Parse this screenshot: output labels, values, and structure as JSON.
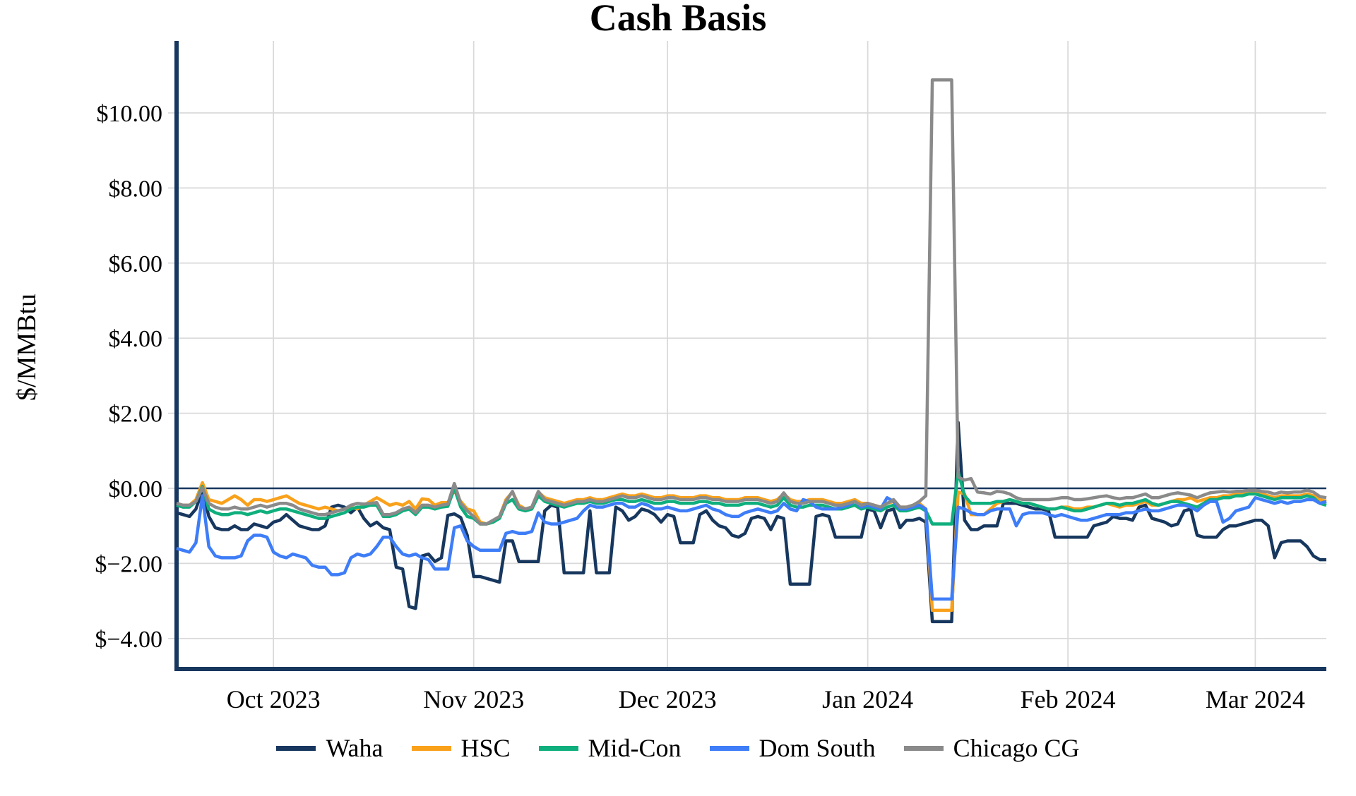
{
  "page": {
    "background": "#FFFFFF"
  },
  "chart_data": {
    "type": "line",
    "title": "Cash Basis",
    "ylabel": "$/MMBtu",
    "xlabel": "",
    "grid": true,
    "legend_position": "bottom",
    "x_start_date": "2023-09-16",
    "x_end_date": "2024-03-12",
    "x_points": 179,
    "ylim": [
      -4.85,
      11.9
    ],
    "axis_color": "#17375E",
    "grid_color": "#D9D9D9",
    "zero_line": {
      "show": true,
      "color": "#17375E"
    },
    "y_ticks": [
      {
        "value": 10,
        "label": "$10.00"
      },
      {
        "value": 8,
        "label": "$8.00"
      },
      {
        "value": 6,
        "label": "$6.00"
      },
      {
        "value": 4,
        "label": "$4.00"
      },
      {
        "value": 2,
        "label": "$2.00"
      },
      {
        "value": 0,
        "label": "$0.00"
      },
      {
        "value": -2,
        "label": "$−2.00"
      },
      {
        "value": -4,
        "label": "$−4.00"
      }
    ],
    "x_ticks": [
      {
        "label": "Oct 2023",
        "day_index": 15
      },
      {
        "label": "Nov 2023",
        "day_index": 46
      },
      {
        "label": "Dec 2023",
        "day_index": 76
      },
      {
        "label": "Jan 2024",
        "day_index": 107
      },
      {
        "label": "Feb 2024",
        "day_index": 138
      },
      {
        "label": "Mar 2024",
        "day_index": 167
      }
    ],
    "series": [
      {
        "name": "Waha",
        "color": "#17375E",
        "values": [
          -0.65,
          -0.7,
          -0.75,
          -0.55,
          -0.05,
          -0.75,
          -1.05,
          -1.1,
          -1.1,
          -1.0,
          -1.1,
          -1.1,
          -0.95,
          -1.0,
          -1.05,
          -0.9,
          -0.85,
          -0.7,
          -0.85,
          -1.0,
          -1.05,
          -1.1,
          -1.1,
          -1.0,
          -0.5,
          -0.45,
          -0.5,
          -0.65,
          -0.5,
          -0.8,
          -1.0,
          -0.9,
          -1.05,
          -1.1,
          -2.1,
          -2.15,
          -3.15,
          -3.2,
          -1.8,
          -1.75,
          -1.95,
          -1.85,
          -0.72,
          -0.68,
          -0.78,
          -1.25,
          -2.35,
          -2.35,
          -2.4,
          -2.45,
          -2.5,
          -1.4,
          -1.4,
          -1.95,
          -1.95,
          -1.95,
          -1.95,
          -0.6,
          -0.45,
          -0.5,
          -2.25,
          -2.25,
          -2.25,
          -2.25,
          -0.6,
          -2.25,
          -2.25,
          -2.25,
          -0.5,
          -0.6,
          -0.85,
          -0.75,
          -0.55,
          -0.6,
          -0.7,
          -0.9,
          -0.7,
          -0.75,
          -1.45,
          -1.45,
          -1.45,
          -0.7,
          -0.6,
          -0.85,
          -1.0,
          -1.05,
          -1.25,
          -1.3,
          -1.2,
          -0.8,
          -0.75,
          -0.8,
          -1.1,
          -0.75,
          -0.8,
          -2.55,
          -2.55,
          -2.55,
          -2.55,
          -0.75,
          -0.7,
          -0.75,
          -1.3,
          -1.3,
          -1.3,
          -1.3,
          -1.3,
          -0.55,
          -0.6,
          -1.05,
          -0.6,
          -0.55,
          -1.05,
          -0.85,
          -0.85,
          -0.8,
          -0.9,
          -3.55,
          -3.55,
          -3.55,
          -3.55,
          1.75,
          -0.85,
          -1.1,
          -1.1,
          -1.0,
          -1.0,
          -1.0,
          -0.4,
          -0.4,
          -0.4,
          -0.45,
          -0.5,
          -0.55,
          -0.55,
          -0.6,
          -1.3,
          -1.3,
          -1.3,
          -1.3,
          -1.3,
          -1.3,
          -1.0,
          -0.95,
          -0.9,
          -0.75,
          -0.8,
          -0.8,
          -0.85,
          -0.5,
          -0.45,
          -0.8,
          -0.85,
          -0.9,
          -1.0,
          -0.95,
          -0.6,
          -0.55,
          -1.25,
          -1.3,
          -1.3,
          -1.3,
          -1.1,
          -1.0,
          -1.0,
          -0.95,
          -0.9,
          -0.85,
          -0.85,
          -1.0,
          -1.85,
          -1.45,
          -1.4,
          -1.4,
          -1.4,
          -1.55,
          -1.8,
          -1.9,
          -1.9
        ]
      },
      {
        "name": "HSC",
        "color": "#F9A11B",
        "values": [
          -0.4,
          -0.45,
          -0.45,
          -0.3,
          0.15,
          -0.3,
          -0.35,
          -0.4,
          -0.3,
          -0.2,
          -0.3,
          -0.45,
          -0.3,
          -0.3,
          -0.35,
          -0.3,
          -0.25,
          -0.2,
          -0.3,
          -0.4,
          -0.45,
          -0.5,
          -0.55,
          -0.5,
          -0.55,
          -0.6,
          -0.55,
          -0.5,
          -0.55,
          -0.45,
          -0.35,
          -0.25,
          -0.35,
          -0.45,
          -0.4,
          -0.45,
          -0.35,
          -0.55,
          -0.28,
          -0.3,
          -0.45,
          -0.38,
          -0.38,
          -0.06,
          -0.35,
          -0.55,
          -0.6,
          -0.9,
          -0.95,
          -0.9,
          -0.75,
          -0.3,
          -0.1,
          -0.45,
          -0.55,
          -0.5,
          -0.1,
          -0.25,
          -0.3,
          -0.35,
          -0.4,
          -0.35,
          -0.3,
          -0.3,
          -0.25,
          -0.3,
          -0.3,
          -0.25,
          -0.2,
          -0.15,
          -0.2,
          -0.2,
          -0.15,
          -0.2,
          -0.25,
          -0.25,
          -0.2,
          -0.2,
          -0.25,
          -0.25,
          -0.25,
          -0.2,
          -0.2,
          -0.25,
          -0.25,
          -0.3,
          -0.3,
          -0.3,
          -0.25,
          -0.25,
          -0.25,
          -0.3,
          -0.35,
          -0.3,
          -0.15,
          -0.3,
          -0.35,
          -0.35,
          -0.3,
          -0.3,
          -0.3,
          -0.35,
          -0.4,
          -0.4,
          -0.35,
          -0.3,
          -0.4,
          -0.4,
          -0.45,
          -0.5,
          -0.4,
          -0.35,
          -0.5,
          -0.5,
          -0.45,
          -0.4,
          -0.55,
          -3.25,
          -3.25,
          -3.25,
          -3.25,
          -0.1,
          -0.15,
          -0.7,
          -0.7,
          -0.7,
          -0.55,
          -0.4,
          -0.35,
          -0.3,
          -0.35,
          -0.4,
          -0.4,
          -0.45,
          -0.5,
          -0.55,
          -0.55,
          -0.5,
          -0.5,
          -0.55,
          -0.55,
          -0.5,
          -0.5,
          -0.45,
          -0.4,
          -0.45,
          -0.5,
          -0.45,
          -0.45,
          -0.4,
          -0.35,
          -0.45,
          -0.45,
          -0.4,
          -0.35,
          -0.3,
          -0.3,
          -0.25,
          -0.35,
          -0.3,
          -0.25,
          -0.25,
          -0.2,
          -0.2,
          -0.15,
          -0.15,
          -0.1,
          -0.1,
          -0.15,
          -0.2,
          -0.25,
          -0.2,
          -0.2,
          -0.2,
          -0.2,
          -0.15,
          -0.2,
          -0.3,
          -0.35
        ]
      },
      {
        "name": "Mid-Con",
        "color": "#0FAF7D",
        "values": [
          -0.45,
          -0.5,
          -0.5,
          -0.35,
          0.05,
          -0.55,
          -0.65,
          -0.7,
          -0.7,
          -0.65,
          -0.65,
          -0.7,
          -0.65,
          -0.6,
          -0.65,
          -0.6,
          -0.55,
          -0.55,
          -0.6,
          -0.65,
          -0.7,
          -0.75,
          -0.8,
          -0.8,
          -0.75,
          -0.7,
          -0.65,
          -0.55,
          -0.5,
          -0.5,
          -0.45,
          -0.45,
          -0.75,
          -0.75,
          -0.7,
          -0.6,
          -0.55,
          -0.7,
          -0.5,
          -0.5,
          -0.55,
          -0.5,
          -0.48,
          0.0,
          -0.5,
          -0.75,
          -0.8,
          -0.95,
          -0.95,
          -0.9,
          -0.8,
          -0.4,
          -0.3,
          -0.55,
          -0.6,
          -0.55,
          -0.2,
          -0.35,
          -0.4,
          -0.45,
          -0.5,
          -0.45,
          -0.4,
          -0.4,
          -0.35,
          -0.4,
          -0.4,
          -0.35,
          -0.3,
          -0.3,
          -0.35,
          -0.35,
          -0.3,
          -0.35,
          -0.4,
          -0.4,
          -0.35,
          -0.35,
          -0.4,
          -0.4,
          -0.4,
          -0.35,
          -0.35,
          -0.4,
          -0.4,
          -0.45,
          -0.45,
          -0.45,
          -0.4,
          -0.4,
          -0.4,
          -0.45,
          -0.5,
          -0.45,
          -0.25,
          -0.45,
          -0.5,
          -0.5,
          -0.45,
          -0.45,
          -0.45,
          -0.5,
          -0.55,
          -0.55,
          -0.5,
          -0.45,
          -0.55,
          -0.5,
          -0.55,
          -0.6,
          -0.5,
          -0.45,
          -0.6,
          -0.6,
          -0.55,
          -0.5,
          -0.6,
          -0.95,
          -0.95,
          -0.95,
          -0.95,
          0.45,
          -0.2,
          -0.4,
          -0.4,
          -0.4,
          -0.4,
          -0.35,
          -0.35,
          -0.3,
          -0.35,
          -0.4,
          -0.4,
          -0.45,
          -0.5,
          -0.55,
          -0.55,
          -0.5,
          -0.55,
          -0.6,
          -0.6,
          -0.55,
          -0.5,
          -0.45,
          -0.4,
          -0.4,
          -0.45,
          -0.4,
          -0.4,
          -0.35,
          -0.3,
          -0.4,
          -0.45,
          -0.4,
          -0.35,
          -0.35,
          -0.4,
          -0.45,
          -0.5,
          -0.4,
          -0.3,
          -0.3,
          -0.25,
          -0.25,
          -0.2,
          -0.2,
          -0.15,
          -0.15,
          -0.2,
          -0.25,
          -0.3,
          -0.25,
          -0.25,
          -0.25,
          -0.25,
          -0.2,
          -0.25,
          -0.4,
          -0.45
        ]
      },
      {
        "name": "Dom South",
        "color": "#3E7DF7",
        "values": [
          -1.6,
          -1.65,
          -1.7,
          -1.45,
          -0.2,
          -1.55,
          -1.8,
          -1.85,
          -1.85,
          -1.85,
          -1.8,
          -1.4,
          -1.25,
          -1.25,
          -1.3,
          -1.7,
          -1.8,
          -1.85,
          -1.75,
          -1.8,
          -1.85,
          -2.05,
          -2.1,
          -2.1,
          -2.3,
          -2.3,
          -2.25,
          -1.85,
          -1.75,
          -1.8,
          -1.75,
          -1.55,
          -1.3,
          -1.3,
          -1.55,
          -1.75,
          -1.8,
          -1.75,
          -1.85,
          -1.9,
          -2.15,
          -2.15,
          -2.15,
          -1.05,
          -1.0,
          -1.4,
          -1.55,
          -1.65,
          -1.65,
          -1.65,
          -1.65,
          -1.2,
          -1.15,
          -1.2,
          -1.2,
          -1.15,
          -0.65,
          -0.9,
          -0.95,
          -0.95,
          -0.9,
          -0.85,
          -0.8,
          -0.6,
          -0.45,
          -0.5,
          -0.5,
          -0.45,
          -0.4,
          -0.4,
          -0.5,
          -0.5,
          -0.4,
          -0.45,
          -0.55,
          -0.55,
          -0.5,
          -0.55,
          -0.6,
          -0.6,
          -0.55,
          -0.5,
          -0.45,
          -0.55,
          -0.6,
          -0.7,
          -0.75,
          -0.75,
          -0.65,
          -0.6,
          -0.55,
          -0.6,
          -0.65,
          -0.6,
          -0.4,
          -0.55,
          -0.6,
          -0.3,
          -0.35,
          -0.5,
          -0.55,
          -0.55,
          -0.55,
          -0.5,
          -0.45,
          -0.35,
          -0.5,
          -0.45,
          -0.5,
          -0.55,
          -0.25,
          -0.35,
          -0.55,
          -0.55,
          -0.5,
          -0.45,
          -0.55,
          -2.95,
          -2.95,
          -2.95,
          -2.95,
          -0.5,
          -0.55,
          -0.65,
          -0.7,
          -0.7,
          -0.6,
          -0.55,
          -0.55,
          -0.55,
          -1.0,
          -0.7,
          -0.65,
          -0.65,
          -0.65,
          -0.7,
          -0.75,
          -0.7,
          -0.75,
          -0.8,
          -0.85,
          -0.85,
          -0.8,
          -0.75,
          -0.7,
          -0.7,
          -0.7,
          -0.65,
          -0.65,
          -0.6,
          -0.55,
          -0.6,
          -0.6,
          -0.55,
          -0.5,
          -0.45,
          -0.45,
          -0.5,
          -0.6,
          -0.45,
          -0.35,
          -0.35,
          -0.9,
          -0.8,
          -0.6,
          -0.55,
          -0.5,
          -0.25,
          -0.3,
          -0.35,
          -0.4,
          -0.35,
          -0.4,
          -0.35,
          -0.35,
          -0.3,
          -0.3,
          -0.4,
          -0.35
        ]
      },
      {
        "name": "Chicago CG",
        "color": "#8A8A8A",
        "values": [
          -0.4,
          -0.45,
          -0.45,
          -0.35,
          0.02,
          -0.4,
          -0.5,
          -0.55,
          -0.55,
          -0.5,
          -0.55,
          -0.55,
          -0.5,
          -0.45,
          -0.5,
          -0.45,
          -0.4,
          -0.4,
          -0.45,
          -0.55,
          -0.6,
          -0.65,
          -0.7,
          -0.7,
          -0.65,
          -0.6,
          -0.55,
          -0.45,
          -0.4,
          -0.42,
          -0.4,
          -0.38,
          -0.7,
          -0.7,
          -0.65,
          -0.55,
          -0.5,
          -0.65,
          -0.45,
          -0.45,
          -0.5,
          -0.45,
          -0.42,
          0.13,
          -0.4,
          -0.6,
          -0.75,
          -0.95,
          -0.95,
          -0.85,
          -0.75,
          -0.35,
          -0.08,
          -0.5,
          -0.55,
          -0.5,
          -0.08,
          -0.3,
          -0.35,
          -0.4,
          -0.45,
          -0.4,
          -0.35,
          -0.35,
          -0.3,
          -0.35,
          -0.35,
          -0.3,
          -0.25,
          -0.2,
          -0.25,
          -0.25,
          -0.2,
          -0.25,
          -0.3,
          -0.3,
          -0.25,
          -0.25,
          -0.3,
          -0.3,
          -0.3,
          -0.25,
          -0.25,
          -0.3,
          -0.3,
          -0.35,
          -0.35,
          -0.35,
          -0.3,
          -0.3,
          -0.3,
          -0.35,
          -0.4,
          -0.35,
          -0.12,
          -0.35,
          -0.4,
          -0.4,
          -0.35,
          -0.35,
          -0.35,
          -0.4,
          -0.45,
          -0.45,
          -0.4,
          -0.35,
          -0.45,
          -0.4,
          -0.45,
          -0.5,
          -0.4,
          -0.3,
          -0.5,
          -0.5,
          -0.45,
          -0.35,
          -0.2,
          10.88,
          10.88,
          10.88,
          10.88,
          0.3,
          0.22,
          0.26,
          -0.1,
          -0.12,
          -0.15,
          -0.08,
          -0.1,
          -0.15,
          -0.25,
          -0.3,
          -0.3,
          -0.3,
          -0.3,
          -0.3,
          -0.28,
          -0.25,
          -0.25,
          -0.3,
          -0.3,
          -0.28,
          -0.25,
          -0.22,
          -0.2,
          -0.25,
          -0.28,
          -0.25,
          -0.25,
          -0.2,
          -0.15,
          -0.25,
          -0.25,
          -0.2,
          -0.15,
          -0.12,
          -0.15,
          -0.18,
          -0.25,
          -0.18,
          -0.12,
          -0.1,
          -0.08,
          -0.1,
          -0.08,
          -0.08,
          -0.05,
          -0.05,
          -0.08,
          -0.1,
          -0.15,
          -0.1,
          -0.12,
          -0.1,
          -0.1,
          -0.05,
          -0.1,
          -0.22,
          -0.25
        ]
      }
    ]
  }
}
